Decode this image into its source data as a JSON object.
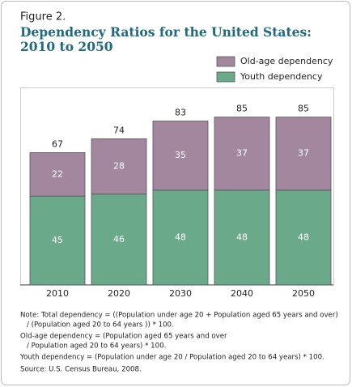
{
  "chart_data": {
    "type": "stacked_bar",
    "figure_label": "Figure 2.",
    "title_lines": [
      "Dependency Ratios for the United States:",
      "2010 to 2050"
    ],
    "categories": [
      "2010",
      "2020",
      "2030",
      "2040",
      "2050"
    ],
    "series": [
      {
        "name": "Youth dependency",
        "color": "#6aa98a",
        "values": [
          45,
          46,
          48,
          48,
          48
        ]
      },
      {
        "name": "Old-age dependency",
        "color": "#a2879f",
        "values": [
          22,
          28,
          35,
          37,
          37
        ]
      }
    ],
    "totals": [
      67,
      74,
      83,
      85,
      85
    ],
    "notes": [
      "Note: Total dependency = ((Population under age 20 + Population aged 65 years and over)",
      "/ (Population aged 20 to 64 years )) * 100.",
      "Old-age dependency = (Population aged 65 years and over",
      "/ Population aged 20 to 64 years) * 100.",
      "Youth dependency = (Population under age 20 / Population aged 20 to 64 years) * 100.",
      "Source: U.S. Census Bureau, 2008."
    ]
  }
}
